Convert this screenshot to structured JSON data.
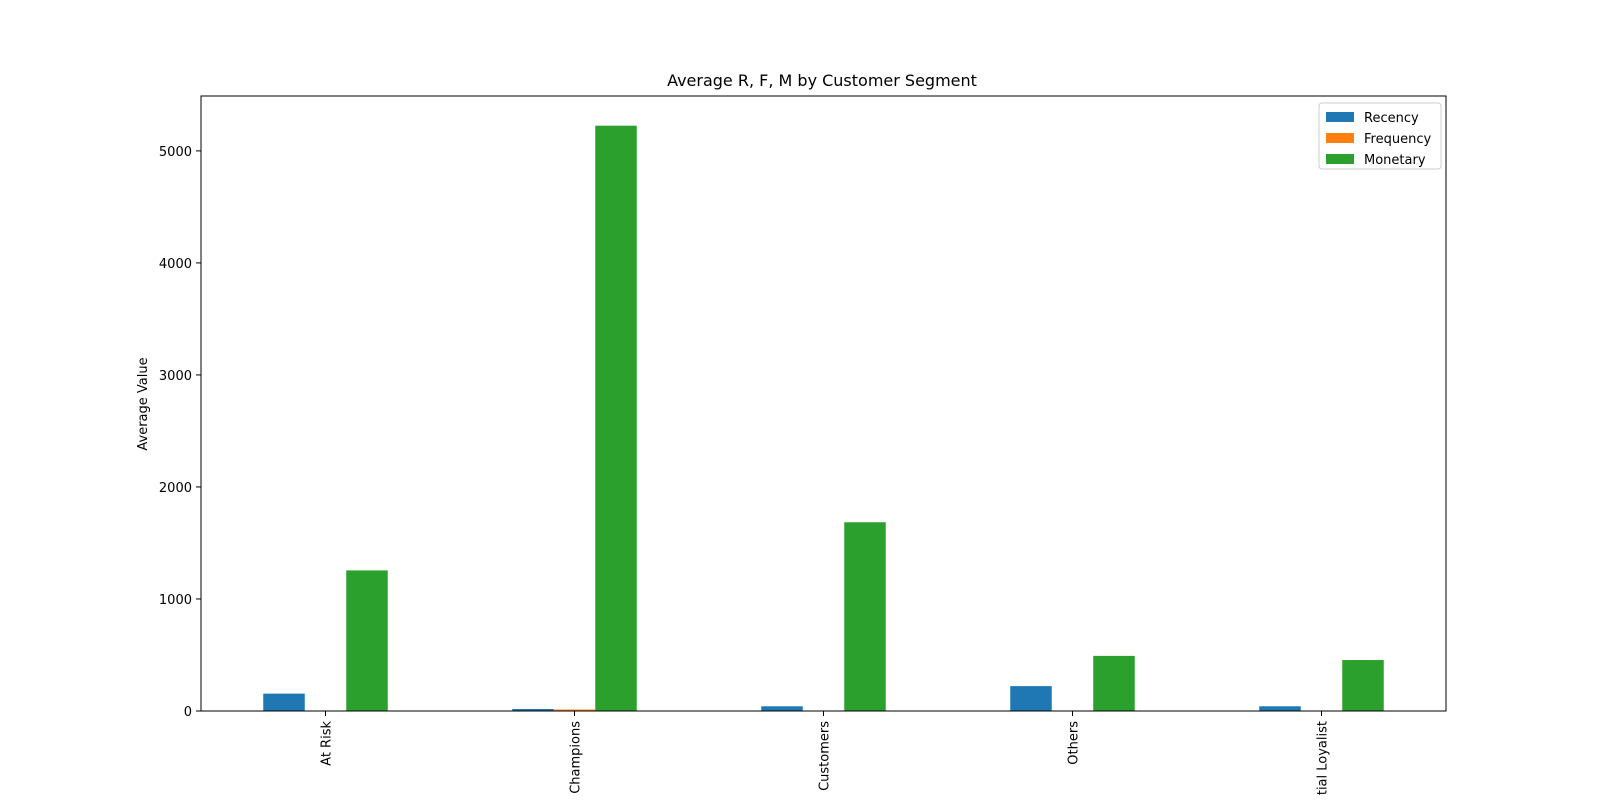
{
  "chart_data": {
    "type": "bar",
    "title": "Average R, F, M by Customer Segment",
    "xlabel": "",
    "ylabel": "Average Value",
    "categories": [
      "At Risk",
      "Champions",
      "Customers",
      "Others",
      "Potential Loyalist"
    ],
    "series": [
      {
        "name": "Recency",
        "color": "#1f77b4",
        "values": [
          155,
          18,
          42,
          222,
          42
        ]
      },
      {
        "name": "Frequency",
        "color": "#ff7f0e",
        "values": [
          1.5,
          13,
          3,
          1.2,
          2
        ]
      },
      {
        "name": "Monetary",
        "color": "#2ca02c",
        "values": [
          1255,
          5225,
          1685,
          492,
          455
        ]
      }
    ],
    "ylim": [
      0,
      5490
    ],
    "yticks": [
      0,
      1000,
      2000,
      3000,
      4000,
      5000
    ],
    "grid": false,
    "legend_position": "top-right",
    "x_tick_rotation": "vertical"
  }
}
